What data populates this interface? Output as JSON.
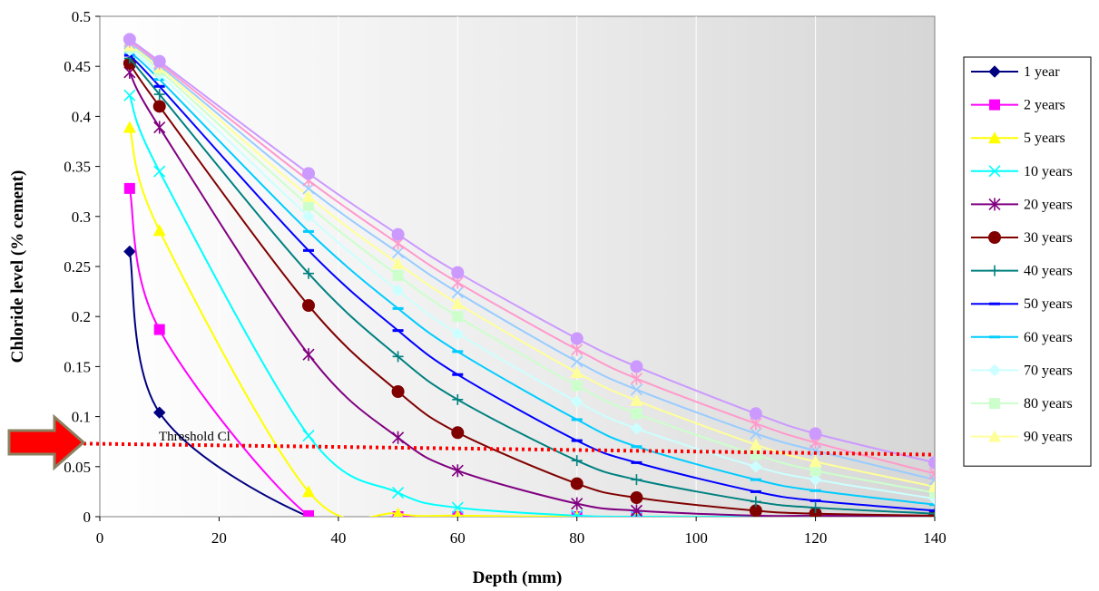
{
  "chart_data": {
    "type": "line",
    "xlabel": "Depth (mm)",
    "ylabel": "Chloride level (% cement)",
    "xlim": [
      0,
      140
    ],
    "ylim": [
      0,
      0.5
    ],
    "xticks": [
      0,
      20,
      40,
      60,
      80,
      100,
      120,
      140
    ],
    "yticks": [
      0,
      0.05,
      0.1,
      0.15,
      0.2,
      0.25,
      0.3,
      0.35,
      0.4,
      0.45,
      0.5
    ],
    "grid": "vertical",
    "legend_position": "right",
    "x": [
      5,
      10,
      35,
      50,
      60,
      80,
      90,
      110,
      120,
      140
    ],
    "series": [
      {
        "name": "1 year",
        "color": "#000080",
        "marker": "diamond",
        "values": [
          0.265,
          0.104,
          0,
          0,
          0,
          0,
          0,
          0,
          0,
          0
        ]
      },
      {
        "name": "2 years",
        "color": "#FF00FF",
        "marker": "square",
        "values": [
          0.328,
          0.187,
          0.001,
          0,
          0,
          0,
          0,
          0,
          0,
          0
        ]
      },
      {
        "name": "5 years",
        "color": "#FFFF00",
        "marker": "triangle",
        "values": [
          0.389,
          0.286,
          0.025,
          0.003,
          0.001,
          0,
          0,
          0,
          0,
          0
        ]
      },
      {
        "name": "10 years",
        "color": "#00FFFF",
        "marker": "x",
        "values": [
          0.421,
          0.345,
          0.081,
          0.024,
          0.009,
          0.001,
          0.0,
          0,
          0,
          0
        ]
      },
      {
        "name": "20 years",
        "color": "#800080",
        "marker": "star",
        "values": [
          0.444,
          0.389,
          0.162,
          0.079,
          0.046,
          0.013,
          0.006,
          0.001,
          0.001,
          0
        ]
      },
      {
        "name": "30 years",
        "color": "#800000",
        "marker": "circle",
        "values": [
          0.453,
          0.41,
          0.211,
          0.125,
          0.084,
          0.033,
          0.019,
          0.006,
          0.003,
          0.001
        ]
      },
      {
        "name": "40 years",
        "color": "#008080",
        "marker": "plus",
        "values": [
          0.458,
          0.422,
          0.243,
          0.16,
          0.117,
          0.056,
          0.037,
          0.015,
          0.009,
          0.003
        ]
      },
      {
        "name": "50 years",
        "color": "#0000FF",
        "marker": "dash",
        "values": [
          0.461,
          0.43,
          0.266,
          0.186,
          0.142,
          0.076,
          0.054,
          0.025,
          0.016,
          0.006
        ]
      },
      {
        "name": "60 years",
        "color": "#00CCFF",
        "marker": "dash",
        "values": [
          0.464,
          0.437,
          0.285,
          0.208,
          0.165,
          0.097,
          0.07,
          0.037,
          0.026,
          0.012
        ]
      },
      {
        "name": "70 years",
        "color": "#CCFFFF",
        "marker": "diamond",
        "values": [
          0.466,
          0.442,
          0.3,
          0.226,
          0.183,
          0.115,
          0.088,
          0.05,
          0.037,
          0.018
        ]
      },
      {
        "name": "80 years",
        "color": "#CCFFCC",
        "marker": "square",
        "values": [
          0.469,
          0.446,
          0.311,
          0.241,
          0.2,
          0.131,
          0.103,
          0.062,
          0.046,
          0.024
        ]
      },
      {
        "name": "90 years",
        "color": "#FFFF99",
        "marker": "triangle",
        "values": [
          0.471,
          0.449,
          0.32,
          0.253,
          0.213,
          0.144,
          0.116,
          0.072,
          0.055,
          0.03
        ]
      },
      {
        "name": "",
        "color": "#99CCFF",
        "marker": "x",
        "values": [
          0.473,
          0.451,
          0.328,
          0.264,
          0.224,
          0.155,
          0.127,
          0.083,
          0.066,
          0.037
        ]
      },
      {
        "name": "",
        "color": "#FF99CC",
        "marker": "star",
        "values": [
          0.475,
          0.453,
          0.336,
          0.273,
          0.234,
          0.167,
          0.138,
          0.093,
          0.074,
          0.043
        ]
      },
      {
        "name": "",
        "color": "#CC99FF",
        "marker": "circle",
        "values": [
          0.477,
          0.455,
          0.343,
          0.282,
          0.244,
          0.178,
          0.15,
          0.103,
          0.083,
          0.054
        ]
      }
    ],
    "threshold": {
      "label": "Threshold Cl",
      "values": [
        0.073,
        0.062
      ],
      "color": "#FF0000",
      "style": "dotted"
    },
    "arrow_color": "#FF0000",
    "arrow_edge_color": "#8B8060"
  }
}
